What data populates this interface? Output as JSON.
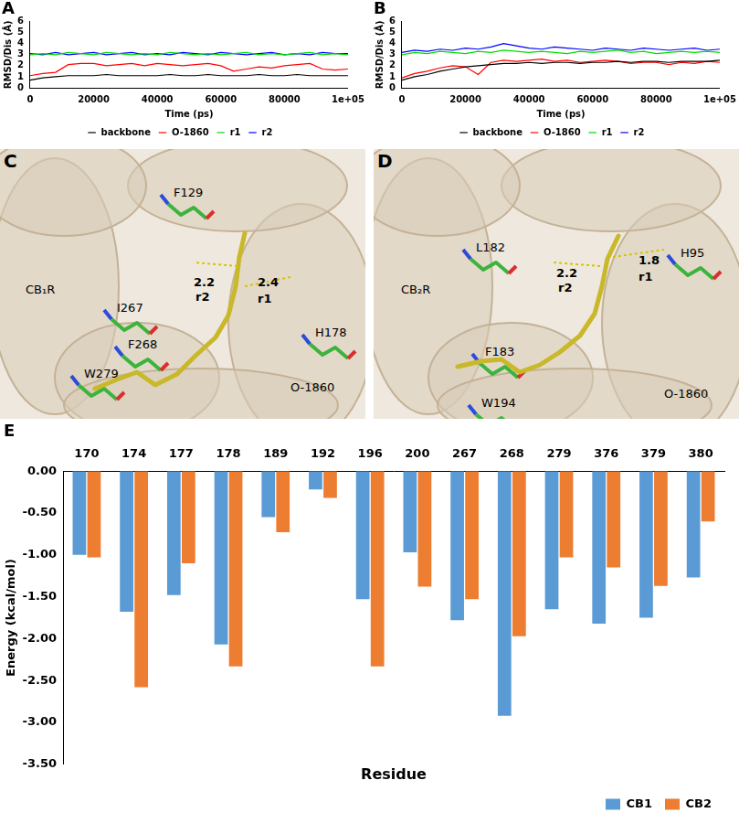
{
  "chart_data": [
    {
      "type": "line",
      "title": "A",
      "x_label": "Time (ps)",
      "y_label": "RMSD/Dis (Å)",
      "x": [
        0,
        4000,
        8000,
        12000,
        16000,
        20000,
        24000,
        28000,
        32000,
        36000,
        40000,
        44000,
        48000,
        52000,
        56000,
        60000,
        64000,
        68000,
        72000,
        76000,
        80000,
        84000,
        88000,
        92000,
        96000,
        100000
      ],
      "series": [
        {
          "name": "backbone",
          "color": "#000000",
          "values": [
            0.7,
            0.9,
            1.0,
            1.1,
            1.1,
            1.1,
            1.2,
            1.1,
            1.1,
            1.1,
            1.1,
            1.2,
            1.1,
            1.1,
            1.2,
            1.1,
            1.1,
            1.1,
            1.2,
            1.1,
            1.1,
            1.2,
            1.1,
            1.1,
            1.1,
            1.1
          ]
        },
        {
          "name": "O-1860",
          "color": "#ff0000",
          "values": [
            1.1,
            1.3,
            1.4,
            2.1,
            2.2,
            2.2,
            2.0,
            2.1,
            2.2,
            2.0,
            2.2,
            2.1,
            2.0,
            2.1,
            2.2,
            2.0,
            1.5,
            1.7,
            1.9,
            1.8,
            2.0,
            2.1,
            2.2,
            1.7,
            1.6,
            1.7
          ]
        },
        {
          "name": "r1",
          "color": "#00dd00",
          "values": [
            3.0,
            3.1,
            3.0,
            3.2,
            3.1,
            3.0,
            3.2,
            3.1,
            3.0,
            3.1,
            3.0,
            3.2,
            3.1,
            3.0,
            3.1,
            3.0,
            3.1,
            3.2,
            3.0,
            3.1,
            3.0,
            3.1,
            3.2,
            3.0,
            3.1,
            3.0
          ]
        },
        {
          "name": "r2",
          "color": "#0000ff",
          "values": [
            3.1,
            3.0,
            3.2,
            3.0,
            3.1,
            3.2,
            3.0,
            3.1,
            3.2,
            3.0,
            3.1,
            3.0,
            3.2,
            3.1,
            3.0,
            3.2,
            3.1,
            3.0,
            3.1,
            3.2,
            3.0,
            3.1,
            3.0,
            3.2,
            3.1,
            3.1
          ]
        }
      ],
      "xlim": [
        0,
        100000
      ],
      "xticks": [
        0,
        20000,
        40000,
        60000,
        80000,
        {
          "value": 100000,
          "label": "1e+05"
        }
      ],
      "ylim": [
        0,
        6
      ],
      "yticks": [
        0,
        1,
        2,
        3,
        4,
        5,
        6
      ],
      "grid": false,
      "legend": "bottom"
    },
    {
      "type": "line",
      "title": "B",
      "x_label": "Time (ps)",
      "y_label": "RMSD/Dis (Å)",
      "x": [
        0,
        4000,
        8000,
        12000,
        16000,
        20000,
        24000,
        28000,
        32000,
        36000,
        40000,
        44000,
        48000,
        52000,
        56000,
        60000,
        64000,
        68000,
        72000,
        76000,
        80000,
        84000,
        88000,
        92000,
        96000,
        100000
      ],
      "series": [
        {
          "name": "backbone",
          "color": "#000000",
          "values": [
            0.7,
            1.0,
            1.2,
            1.5,
            1.7,
            1.9,
            2.0,
            2.1,
            2.2,
            2.2,
            2.3,
            2.2,
            2.3,
            2.3,
            2.2,
            2.3,
            2.3,
            2.4,
            2.3,
            2.4,
            2.4,
            2.3,
            2.4,
            2.4,
            2.4,
            2.5
          ]
        },
        {
          "name": "O-1860",
          "color": "#ff0000",
          "values": [
            0.9,
            1.3,
            1.5,
            1.8,
            2.0,
            1.9,
            1.2,
            2.3,
            2.5,
            2.4,
            2.5,
            2.6,
            2.4,
            2.5,
            2.3,
            2.4,
            2.5,
            2.4,
            2.2,
            2.3,
            2.3,
            2.1,
            2.3,
            2.2,
            2.4,
            2.3
          ]
        },
        {
          "name": "r1",
          "color": "#00dd00",
          "values": [
            3.0,
            3.2,
            3.1,
            3.3,
            3.2,
            3.1,
            3.3,
            3.2,
            3.4,
            3.3,
            3.2,
            3.3,
            3.2,
            3.1,
            3.3,
            3.2,
            3.3,
            3.4,
            3.2,
            3.3,
            3.1,
            3.2,
            3.3,
            3.2,
            3.3,
            3.2
          ]
        },
        {
          "name": "r2",
          "color": "#0000ff",
          "values": [
            3.2,
            3.4,
            3.3,
            3.5,
            3.4,
            3.6,
            3.5,
            3.7,
            4.0,
            3.8,
            3.6,
            3.5,
            3.7,
            3.6,
            3.5,
            3.4,
            3.6,
            3.5,
            3.4,
            3.6,
            3.5,
            3.4,
            3.5,
            3.6,
            3.4,
            3.5
          ]
        }
      ],
      "xlim": [
        0,
        100000
      ],
      "xticks": [
        0,
        20000,
        40000,
        60000,
        80000,
        {
          "value": 100000,
          "label": "1e+05"
        }
      ],
      "ylim": [
        0,
        6
      ],
      "yticks": [
        0,
        1,
        2,
        3,
        4,
        5,
        6
      ],
      "grid": false,
      "legend": "bottom"
    },
    {
      "type": "bar",
      "title": "E",
      "x_label": "Residue",
      "y_label": "Energy (kcal/mol)",
      "categories": [
        "170",
        "174",
        "177",
        "178",
        "189",
        "192",
        "196",
        "200",
        "267",
        "268",
        "279",
        "376",
        "379",
        "380"
      ],
      "series": [
        {
          "name": "CB1",
          "color": "#5b9bd5",
          "values": [
            -1.0,
            -1.68,
            -1.48,
            -2.07,
            -0.55,
            -0.22,
            -1.53,
            -0.97,
            -1.78,
            -2.92,
            -1.65,
            -1.82,
            -1.75,
            -1.27
          ]
        },
        {
          "name": "CB2",
          "color": "#ed7d31",
          "values": [
            -1.03,
            -2.58,
            -1.1,
            -2.33,
            -0.73,
            -0.32,
            -2.33,
            -1.38,
            -1.53,
            -1.97,
            -1.03,
            -1.15,
            -1.37,
            -0.6
          ]
        }
      ],
      "ylim": [
        -3.5,
        0
      ],
      "yticks": [
        {
          "value": 0,
          "label": "0.00"
        },
        {
          "value": -0.5,
          "label": "-0.50"
        },
        {
          "value": -1,
          "label": "-1.00"
        },
        {
          "value": -1.5,
          "label": "-1.50"
        },
        {
          "value": -2,
          "label": "-2.00"
        },
        {
          "value": -2.5,
          "label": "-2.50"
        },
        {
          "value": -3,
          "label": "-3.00"
        },
        {
          "value": -3.5,
          "label": "-3.50"
        }
      ],
      "grid": false,
      "legend": "bottom right"
    }
  ],
  "structures": [
    {
      "title": "C",
      "labels": [
        {
          "text": "F129"
        },
        {
          "text": "H178"
        },
        {
          "text": "CB₁R"
        },
        {
          "text": "I267"
        },
        {
          "text": "F268"
        },
        {
          "text": "O-1860"
        },
        {
          "text": "W279"
        }
      ],
      "bonds": [
        {
          "name": "r2",
          "value": 2.2
        },
        {
          "name": "r1",
          "value": 2.4
        }
      ]
    },
    {
      "title": "D",
      "labels": [
        {
          "text": "L182"
        },
        {
          "text": "H95"
        },
        {
          "text": "CB₂R"
        },
        {
          "text": "F183"
        },
        {
          "text": "O-1860"
        },
        {
          "text": "W194"
        }
      ],
      "bonds": [
        {
          "name": "r2",
          "value": 2.2
        },
        {
          "name": "r1",
          "value": 1.8
        }
      ]
    }
  ]
}
